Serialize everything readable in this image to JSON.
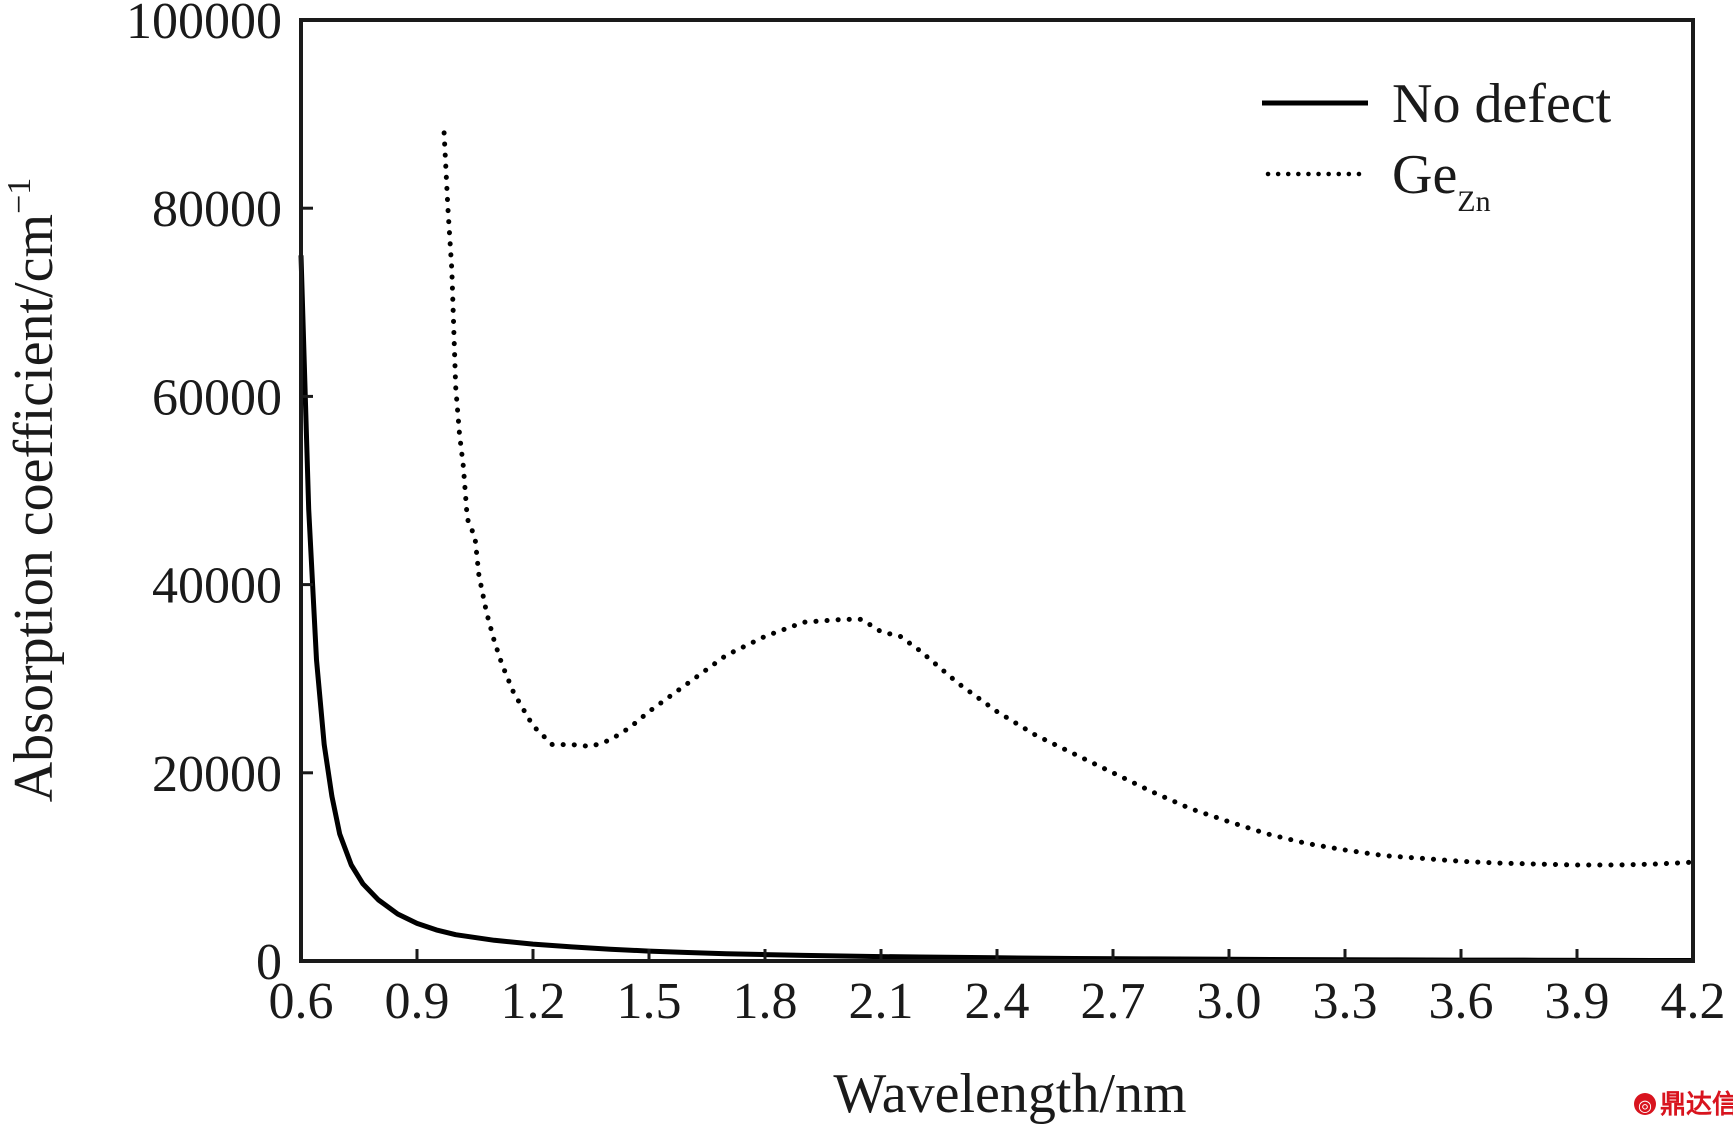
{
  "chart_data": {
    "type": "line",
    "xlabel": "Wavelength/nm",
    "ylabel_main": "Absorption coefficient/cm",
    "ylabel_sup": "−1",
    "xlim": [
      0.6,
      4.2
    ],
    "ylim": [
      0,
      100000
    ],
    "x_ticks": [
      "0.6",
      "0.9",
      "1.2",
      "1.5",
      "1.8",
      "2.1",
      "2.4",
      "2.7",
      "3.0",
      "3.3",
      "3.6",
      "3.9",
      "4.2"
    ],
    "y_ticks": [
      "0",
      "20000",
      "40000",
      "60000",
      "80000",
      "100000"
    ],
    "grid": false,
    "legend_position": "top-right",
    "series": [
      {
        "name": "No defect",
        "style": "solid",
        "color": "#000000",
        "x": [
          0.6,
          0.62,
          0.64,
          0.66,
          0.68,
          0.7,
          0.73,
          0.76,
          0.8,
          0.85,
          0.9,
          0.95,
          1.0,
          1.1,
          1.2,
          1.3,
          1.4,
          1.5,
          1.6,
          1.7,
          1.8,
          1.9,
          2.0,
          2.1,
          2.2,
          2.4,
          2.6,
          2.8,
          3.0,
          3.2,
          3.4,
          3.6,
          3.8,
          4.0,
          4.2
        ],
        "y": [
          75000,
          48000,
          32000,
          23000,
          17500,
          13500,
          10200,
          8200,
          6500,
          5000,
          4000,
          3300,
          2800,
          2200,
          1800,
          1500,
          1250,
          1050,
          900,
          780,
          680,
          600,
          530,
          470,
          420,
          340,
          270,
          220,
          180,
          150,
          120,
          100,
          80,
          60,
          50
        ]
      },
      {
        "name": "Ge",
        "name_sub": "Zn",
        "style": "dotted",
        "color": "#000000",
        "x": [
          0.97,
          0.98,
          0.99,
          1.0,
          1.01,
          1.02,
          1.03,
          1.05,
          1.06,
          1.08,
          1.1,
          1.12,
          1.15,
          1.2,
          1.25,
          1.3,
          1.35,
          1.4,
          1.45,
          1.5,
          1.6,
          1.7,
          1.8,
          1.9,
          2.0,
          2.05,
          2.1,
          2.15,
          2.2,
          2.3,
          2.4,
          2.5,
          2.6,
          2.7,
          2.8,
          2.9,
          3.0,
          3.1,
          3.2,
          3.3,
          3.4,
          3.5,
          3.6,
          3.7,
          3.8,
          3.9,
          4.0,
          4.1,
          4.2
        ],
        "y": [
          88000,
          80000,
          73500,
          61000,
          56000,
          52500,
          47000,
          45000,
          41000,
          37000,
          34000,
          31500,
          28500,
          25000,
          23000,
          23000,
          22800,
          23500,
          24800,
          26500,
          29500,
          32500,
          34500,
          36000,
          36300,
          36300,
          35000,
          34500,
          33000,
          29500,
          26500,
          24000,
          22000,
          20000,
          18000,
          16200,
          14800,
          13500,
          12500,
          11800,
          11200,
          10900,
          10600,
          10400,
          10300,
          10200,
          10200,
          10300,
          10500
        ]
      }
    ]
  },
  "watermark": {
    "text": "鼎达信",
    "color": "#d8141e"
  }
}
